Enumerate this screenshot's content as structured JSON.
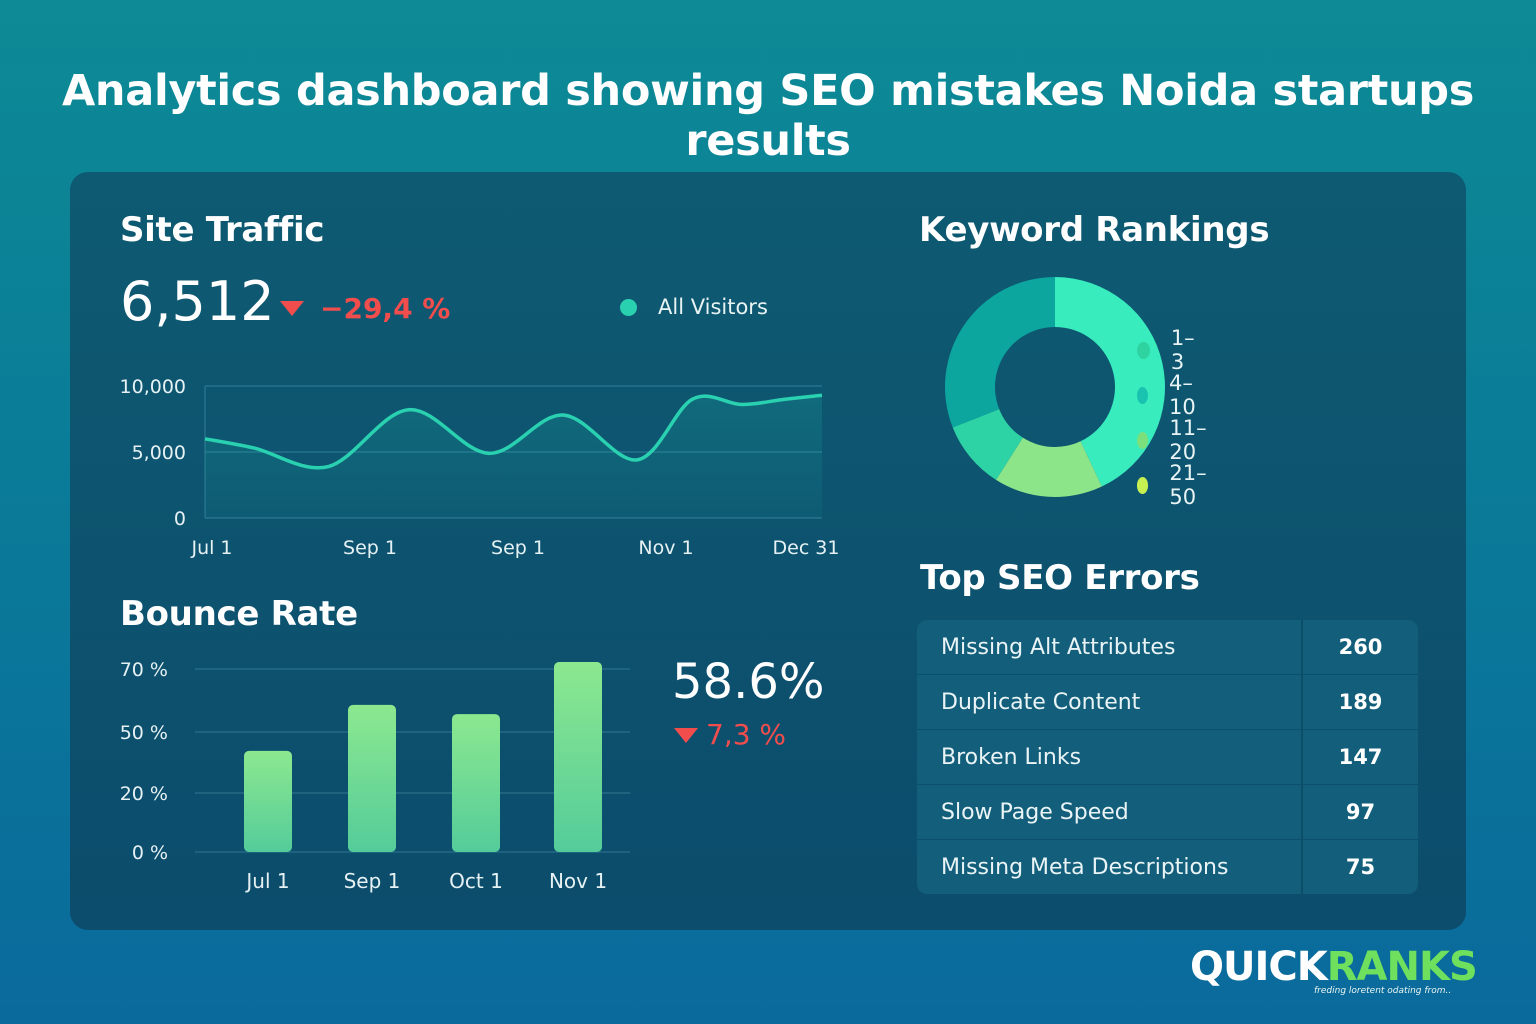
{
  "page_title": "Analytics dashboard showing SEO mistakes Noida startups results",
  "site_traffic": {
    "title": "Site Traffic",
    "value": "6,512",
    "change": "−29,4 %",
    "legend": "All Visitors",
    "color": "#2ad1b1"
  },
  "bounce_rate": {
    "title": "Bounce Rate",
    "value": "58.6%",
    "change": "7,3 %"
  },
  "keyword_rankings": {
    "title": "Keyword Rankings",
    "legend": [
      {
        "label": "1–3",
        "color": "#2fd3a0"
      },
      {
        "label": "4–10",
        "color": "#19c3b0"
      },
      {
        "label": "11–20",
        "color": "#7be07c"
      },
      {
        "label": "21–50",
        "color": "#c6ef52"
      }
    ]
  },
  "seo_errors": {
    "title": "Top SEO Errors",
    "rows": [
      {
        "label": "Missing Alt Attributes",
        "value": "260"
      },
      {
        "label": "Duplicate Content",
        "value": "189"
      },
      {
        "label": "Broken Links",
        "value": "147"
      },
      {
        "label": "Slow Page Speed",
        "value": "97"
      },
      {
        "label": "Missing Meta Descriptions",
        "value": "75"
      }
    ]
  },
  "brand": {
    "part1": "QUICK",
    "part2": "RANKS",
    "tagline": "freding loretent odating from.."
  },
  "chart_data": [
    {
      "type": "line",
      "title": "Site Traffic",
      "x_tick_labels": [
        "Jul 1",
        "Sep 1",
        "Sep 1",
        "Nov 1",
        "Dec 31"
      ],
      "y_tick_labels": [
        "10,000",
        "5,000",
        "0"
      ],
      "ylim": [
        0,
        10000
      ],
      "series": [
        {
          "name": "All Visitors",
          "x": [
            0,
            0.08,
            0.2,
            0.33,
            0.46,
            0.58,
            0.7,
            0.79,
            0.87,
            0.94,
            1.0
          ],
          "y": [
            6000,
            5300,
            3900,
            8200,
            4900,
            7800,
            4400,
            9000,
            8600,
            9000,
            9300
          ]
        }
      ]
    },
    {
      "type": "bar",
      "title": "Bounce Rate",
      "categories": [
        "Jul 1",
        "Sep 1",
        "Oct 1",
        "Nov 1"
      ],
      "y_tick_labels": [
        "70 %",
        "50 %",
        "20 %",
        "0 %"
      ],
      "values": [
        33,
        48,
        45,
        62
      ],
      "ylim": [
        0,
        62
      ]
    },
    {
      "type": "pie",
      "title": "Keyword Rankings",
      "labels": [
        "1–3",
        "4–10",
        "11–20",
        "21–50"
      ],
      "values": [
        43,
        16,
        10,
        31
      ]
    }
  ]
}
